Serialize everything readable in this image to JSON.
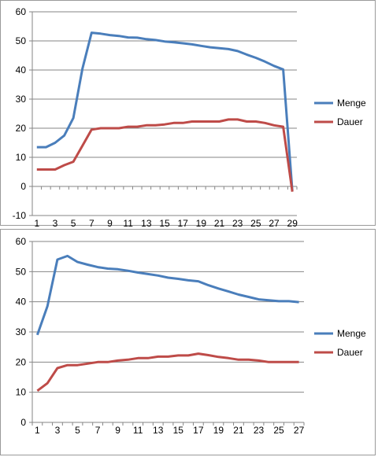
{
  "colors": {
    "Menge": "#4a7ebb",
    "Dauer": "#be4b48",
    "grid": "#868686",
    "axis": "#868686"
  },
  "chart_data": [
    {
      "type": "line",
      "x": [
        1,
        2,
        3,
        4,
        5,
        6,
        7,
        8,
        9,
        10,
        11,
        12,
        13,
        14,
        15,
        16,
        17,
        18,
        19,
        20,
        21,
        22,
        23,
        24,
        25,
        26,
        27,
        28,
        29
      ],
      "x_tick_labels": [
        "1",
        "3",
        "5",
        "7",
        "9",
        "11",
        "13",
        "15",
        "17",
        "19",
        "21",
        "23",
        "25",
        "27",
        "29"
      ],
      "y_tick_labels": [
        "-10",
        "0",
        "10",
        "20",
        "30",
        "40",
        "50",
        "60"
      ],
      "ylim": [
        -10,
        60
      ],
      "grid": "horizontal",
      "legend_position": "right",
      "series": [
        {
          "name": "Menge",
          "values": [
            13.5,
            13.5,
            15.0,
            17.5,
            23.5,
            40.5,
            52.8,
            52.5,
            52.0,
            51.7,
            51.2,
            51.1,
            50.6,
            50.3,
            49.8,
            49.5,
            49.2,
            48.8,
            48.3,
            47.8,
            47.5,
            47.2,
            46.5,
            45.3,
            44.2,
            42.9,
            41.4,
            40.2,
            -1.5
          ]
        },
        {
          "name": "Dauer",
          "values": [
            5.8,
            5.8,
            5.8,
            7.3,
            8.5,
            14.0,
            19.5,
            20.0,
            20.0,
            20.0,
            20.5,
            20.5,
            21.0,
            21.0,
            21.3,
            21.8,
            21.8,
            22.3,
            22.3,
            22.3,
            22.3,
            23.0,
            23.0,
            22.3,
            22.3,
            21.8,
            21.0,
            20.5,
            -1.8
          ]
        }
      ]
    },
    {
      "type": "line",
      "x": [
        1,
        2,
        3,
        4,
        5,
        6,
        7,
        8,
        9,
        10,
        11,
        12,
        13,
        14,
        15,
        16,
        17,
        18,
        19,
        20,
        21,
        22,
        23,
        24,
        25,
        26,
        27
      ],
      "x_tick_labels": [
        "1",
        "3",
        "5",
        "7",
        "9",
        "11",
        "13",
        "15",
        "17",
        "19",
        "21",
        "23",
        "25",
        "27"
      ],
      "y_tick_labels": [
        "0",
        "10",
        "20",
        "30",
        "40",
        "50",
        "60"
      ],
      "ylim": [
        0,
        60
      ],
      "grid": "horizontal",
      "legend_position": "right",
      "series": [
        {
          "name": "Menge",
          "values": [
            29.0,
            38.5,
            54.0,
            55.2,
            53.2,
            52.3,
            51.5,
            51.0,
            50.8,
            50.3,
            49.7,
            49.2,
            48.7,
            48.0,
            47.6,
            47.1,
            46.8,
            45.5,
            44.4,
            43.4,
            42.4,
            41.6,
            40.8,
            40.5,
            40.2,
            40.2,
            39.9
          ]
        },
        {
          "name": "Dauer",
          "values": [
            10.5,
            13.0,
            18.0,
            19.0,
            19.0,
            19.5,
            20.0,
            20.0,
            20.5,
            20.8,
            21.3,
            21.3,
            21.8,
            21.8,
            22.2,
            22.2,
            22.8,
            22.3,
            21.7,
            21.3,
            20.8,
            20.8,
            20.5,
            20.0,
            20.0,
            20.0,
            20.0
          ]
        }
      ]
    }
  ]
}
